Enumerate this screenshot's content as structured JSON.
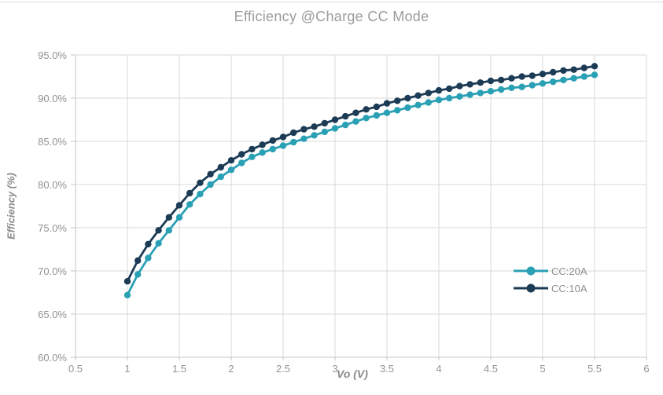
{
  "window": {
    "background_color": "#ffffff",
    "top_rule_color": "#dcdcdc"
  },
  "chart_data": {
    "type": "line",
    "title": "Efficiency @Charge CC Mode",
    "xlabel": "Vo (V)",
    "ylabel": "Efficiency (%)",
    "xlim": [
      0.5,
      6
    ],
    "ylim": [
      60,
      95
    ],
    "grid": true,
    "gridline_color": "#d9d9d9",
    "axis_line_color": "#c6c6c6",
    "tick_label_color": "#929292",
    "title_color": "#9b9b9b",
    "legend_position": "inside-right",
    "xticks": [
      0.5,
      1,
      1.5,
      2,
      2.5,
      3,
      3.5,
      4,
      4.5,
      5,
      5.5,
      6
    ],
    "xtick_labels": [
      "0.5",
      "1",
      "1.5",
      "2",
      "2.5",
      "3",
      "3.5",
      "4",
      "4.5",
      "5",
      "5.5",
      "6"
    ],
    "yticks": [
      60,
      65,
      70,
      75,
      80,
      85,
      90,
      95
    ],
    "ytick_labels": [
      "60.0%",
      "65.0%",
      "70.0%",
      "75.0%",
      "80.0%",
      "85.0%",
      "90.0%",
      "95.0%"
    ],
    "x": [
      1.0,
      1.1,
      1.2,
      1.3,
      1.4,
      1.5,
      1.6,
      1.7,
      1.8,
      1.9,
      2.0,
      2.1,
      2.2,
      2.3,
      2.4,
      2.5,
      2.6,
      2.7,
      2.8,
      2.9,
      3.0,
      3.1,
      3.2,
      3.3,
      3.4,
      3.5,
      3.6,
      3.7,
      3.8,
      3.9,
      4.0,
      4.1,
      4.2,
      4.3,
      4.4,
      4.5,
      4.6,
      4.7,
      4.8,
      4.9,
      5.0,
      5.1,
      5.2,
      5.3,
      5.4,
      5.5
    ],
    "series": [
      {
        "name": "CC:20A",
        "color": "#2aa0b5",
        "values": [
          67.2,
          69.6,
          71.5,
          73.2,
          74.7,
          76.2,
          77.7,
          78.9,
          80.0,
          80.9,
          81.7,
          82.5,
          83.2,
          83.7,
          84.1,
          84.5,
          84.9,
          85.3,
          85.7,
          86.1,
          86.5,
          86.9,
          87.3,
          87.7,
          88.0,
          88.3,
          88.6,
          88.9,
          89.2,
          89.5,
          89.8,
          90.0,
          90.2,
          90.4,
          90.6,
          90.8,
          91.0,
          91.2,
          91.3,
          91.5,
          91.7,
          91.9,
          92.1,
          92.3,
          92.5,
          92.7
        ]
      },
      {
        "name": "CC:10A",
        "color": "#1c3b55",
        "values": [
          68.8,
          71.2,
          73.1,
          74.7,
          76.2,
          77.6,
          79.0,
          80.2,
          81.2,
          82.0,
          82.8,
          83.5,
          84.1,
          84.6,
          85.1,
          85.5,
          86.0,
          86.4,
          86.7,
          87.1,
          87.5,
          87.9,
          88.3,
          88.7,
          89.0,
          89.4,
          89.7,
          90.0,
          90.3,
          90.6,
          90.9,
          91.1,
          91.4,
          91.6,
          91.8,
          92.0,
          92.1,
          92.3,
          92.5,
          92.6,
          92.8,
          93.0,
          93.2,
          93.3,
          93.5,
          93.7
        ]
      }
    ]
  }
}
